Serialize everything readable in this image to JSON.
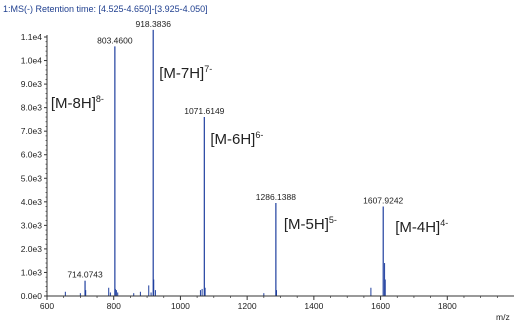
{
  "chart_data": {
    "type": "bar",
    "title": "1:MS(-) Retention time: [4.525-4.650]-[3.925-4.050]",
    "xlabel": "m/z",
    "ylabel": "",
    "xlim": [
      600,
      2000
    ],
    "ylim": [
      0,
      11000
    ],
    "x_ticks": [
      "600",
      "800",
      "1000",
      "1200",
      "1400",
      "1600",
      "1800"
    ],
    "y_ticks": [
      "0.0e0",
      "1.0e3",
      "2.0e3",
      "3.0e3",
      "4.0e3",
      "5.0e3",
      "6.0e3",
      "7.0e3",
      "8.0e3",
      "9.0e3",
      "1.0e4",
      "1.1e4"
    ],
    "peaks": [
      {
        "x": 714.0743,
        "y": 650,
        "label": "714.0743"
      },
      {
        "x": 803.46,
        "y": 10600,
        "label": "803.4600"
      },
      {
        "x": 918.3836,
        "y": 11300,
        "label": "918.3836"
      },
      {
        "x": 1071.6149,
        "y": 7600,
        "label": "1071.6149"
      },
      {
        "x": 1286.1388,
        "y": 3950,
        "label": "1286.1388"
      },
      {
        "x": 1607.9242,
        "y": 3800,
        "label": "1607.9242"
      }
    ],
    "minor_peaks": [
      {
        "x": 655,
        "y": 180
      },
      {
        "x": 700,
        "y": 120
      },
      {
        "x": 716,
        "y": 250
      },
      {
        "x": 785,
        "y": 350
      },
      {
        "x": 790,
        "y": 150
      },
      {
        "x": 805,
        "y": 300
      },
      {
        "x": 808,
        "y": 250
      },
      {
        "x": 812,
        "y": 150
      },
      {
        "x": 860,
        "y": 120
      },
      {
        "x": 880,
        "y": 180
      },
      {
        "x": 905,
        "y": 450
      },
      {
        "x": 912,
        "y": 150
      },
      {
        "x": 920,
        "y": 700
      },
      {
        "x": 925,
        "y": 250
      },
      {
        "x": 1060,
        "y": 250
      },
      {
        "x": 1065,
        "y": 300
      },
      {
        "x": 1074,
        "y": 350
      },
      {
        "x": 1250,
        "y": 120
      },
      {
        "x": 1288,
        "y": 250
      },
      {
        "x": 1571,
        "y": 350
      },
      {
        "x": 1612,
        "y": 1400
      },
      {
        "x": 1614,
        "y": 700
      }
    ],
    "annotations": [
      {
        "text": "[M-8H]",
        "sup": "8-"
      },
      {
        "text": "[M-7H]",
        "sup": "7-"
      },
      {
        "text": "[M-6H]",
        "sup": "6-"
      },
      {
        "text": "[M-5H]",
        "sup": "5-"
      },
      {
        "text": "[M-4H]",
        "sup": "4-"
      }
    ],
    "colors": {
      "peaks": "#1f3f9f",
      "axis": "#333333",
      "title": "#1f3f8f"
    }
  }
}
